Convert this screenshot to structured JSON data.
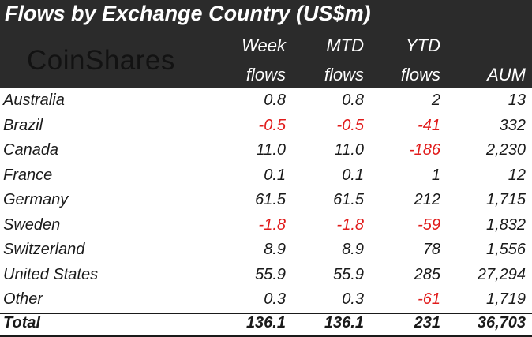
{
  "chart_data": {
    "type": "table",
    "title": "Flows by Exchange Country (US$m)",
    "brand": "CoinShares",
    "columns": [
      {
        "line1": "Week",
        "line2": "flows"
      },
      {
        "line1": "MTD",
        "line2": "flows"
      },
      {
        "line1": "YTD",
        "line2": "flows"
      },
      {
        "line1": "",
        "line2": "AUM"
      }
    ],
    "rows": [
      {
        "label": "Australia",
        "values": [
          "0.8",
          "0.8",
          "2",
          "13"
        ]
      },
      {
        "label": "Brazil",
        "values": [
          "-0.5",
          "-0.5",
          "-41",
          "332"
        ]
      },
      {
        "label": "Canada",
        "values": [
          "11.0",
          "11.0",
          "-186",
          "2,230"
        ]
      },
      {
        "label": "France",
        "values": [
          "0.1",
          "0.1",
          "1",
          "12"
        ]
      },
      {
        "label": "Germany",
        "values": [
          "61.5",
          "61.5",
          "212",
          "1,715"
        ]
      },
      {
        "label": "Sweden",
        "values": [
          "-1.8",
          "-1.8",
          "-59",
          "1,832"
        ]
      },
      {
        "label": "Switzerland",
        "values": [
          "8.9",
          "8.9",
          "78",
          "1,556"
        ]
      },
      {
        "label": "United States",
        "values": [
          "55.9",
          "55.9",
          "285",
          "27,294"
        ]
      },
      {
        "label": "Other",
        "values": [
          "0.3",
          "0.3",
          "-61",
          "1,719"
        ]
      }
    ],
    "total": {
      "label": "Total",
      "values": [
        "136.1",
        "136.1",
        "231",
        "36,703"
      ]
    },
    "colors": {
      "header_bg": "#2b2b2b",
      "header_text": "#ffffff",
      "negative": "#e11b1b",
      "text": "#1a1a1a"
    }
  }
}
